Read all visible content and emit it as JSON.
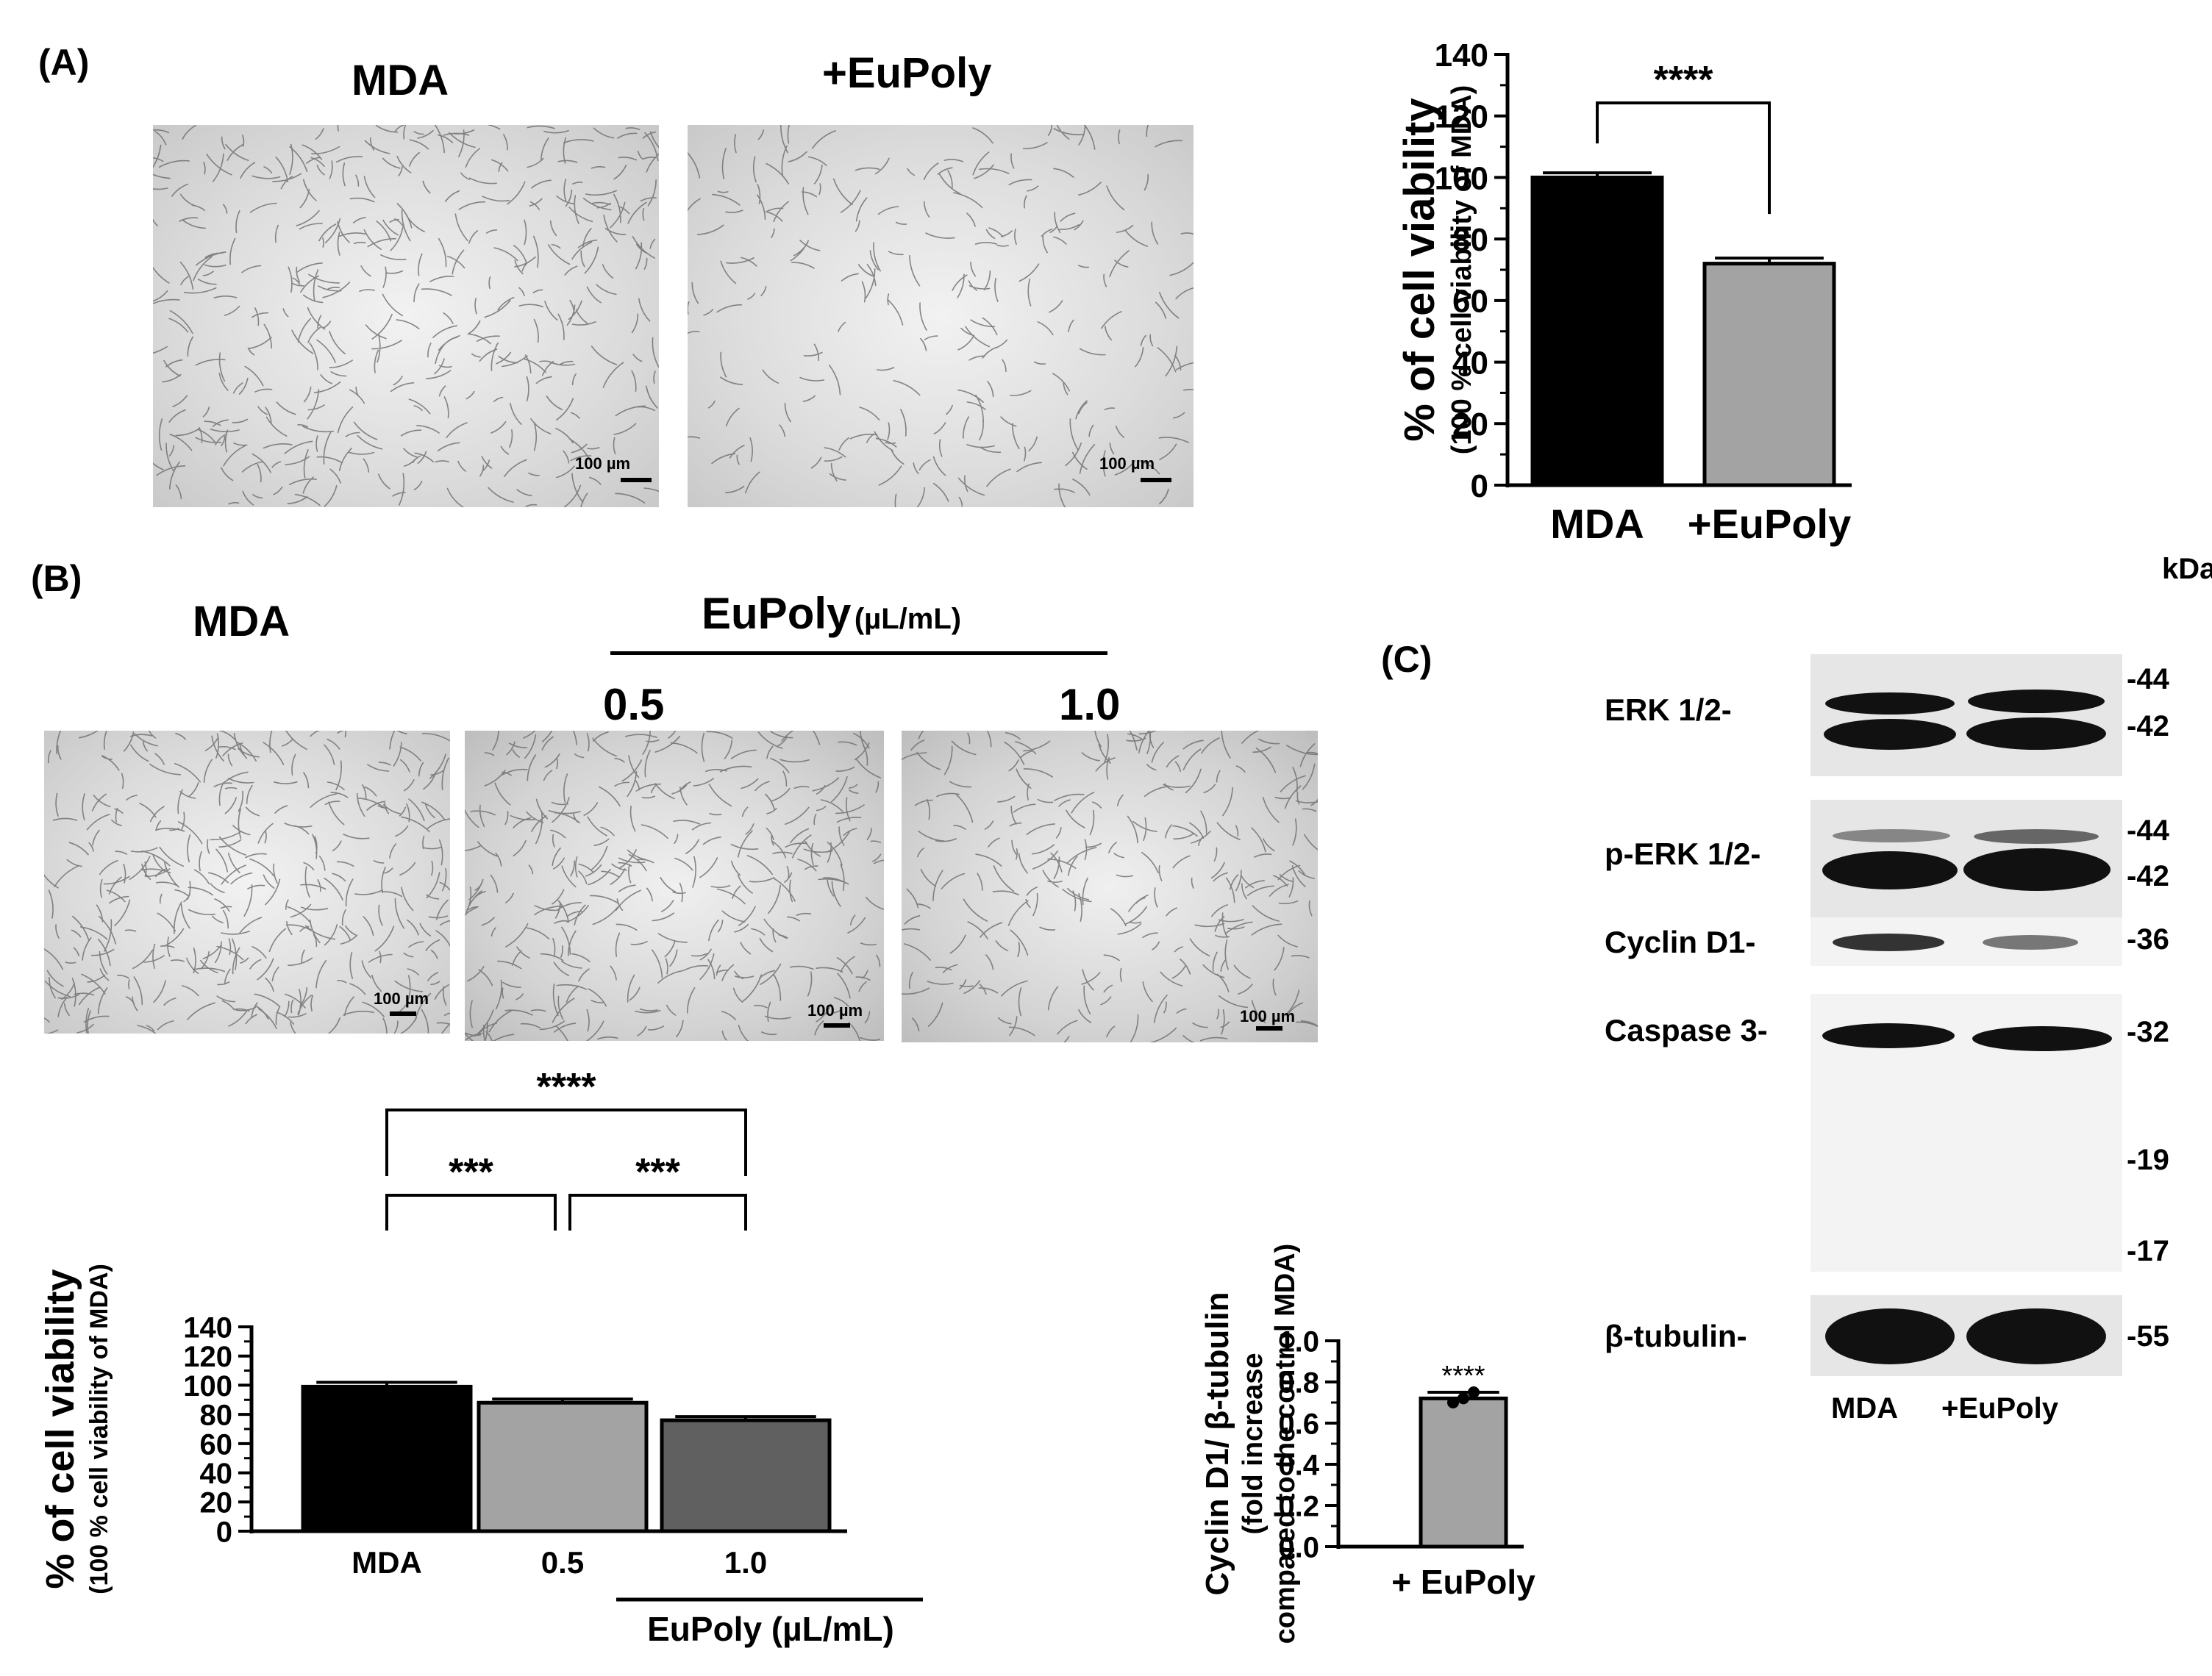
{
  "panel_a": {
    "label": "(A)",
    "images": [
      {
        "title": "MDA",
        "scale_label": "100 µm"
      },
      {
        "title": "+EuPoly",
        "scale_label": "100 µm"
      }
    ]
  },
  "panel_b": {
    "label": "(B)",
    "control_title": "MDA",
    "group_title": "EuPoly",
    "group_unit": "(µL/mL)",
    "images": [
      {
        "title": "",
        "scale_label": "100 µm"
      },
      {
        "title": "0.5",
        "scale_label": "100 µm"
      },
      {
        "title": "1.0",
        "scale_label": "100 µm"
      }
    ]
  },
  "panel_c": {
    "label": "(C)",
    "kda_header": "kDa",
    "rows": [
      {
        "label": "ERK 1/2-",
        "markers": [
          "-44",
          "-42"
        ]
      },
      {
        "label": "p-ERK 1/2-",
        "markers": [
          "-44",
          "-42"
        ]
      },
      {
        "label": "Cyclin D1-",
        "markers": [
          "-36"
        ]
      },
      {
        "label": "Caspase 3-",
        "markers": [
          "-32",
          "-19",
          "-17"
        ]
      },
      {
        "label": "β-tubulin-",
        "markers": [
          "-55"
        ]
      }
    ],
    "lanes": [
      "MDA",
      "+EuPoly"
    ]
  },
  "chart_data": [
    {
      "type": "bar",
      "categories": [
        "MDA",
        "+EuPoly"
      ],
      "values": [
        100,
        72
      ],
      "errors": [
        1.5,
        1.8
      ],
      "colors": [
        "#000000",
        "#a3a3a3"
      ],
      "ylabel": "% of cell viability",
      "ylabel2": "(100 % cell viability of MDA)",
      "ylim": [
        0,
        140
      ],
      "yticks": [
        "0",
        "20",
        "40",
        "60",
        "80",
        "100",
        "120",
        "140"
      ],
      "significance": [
        {
          "from": 0,
          "to": 1,
          "label": "****"
        }
      ]
    },
    {
      "type": "bar",
      "categories": [
        "MDA",
        "0.5",
        "1.0"
      ],
      "values": [
        99,
        88,
        76
      ],
      "errors": [
        3,
        2.5,
        2.5
      ],
      "colors": [
        "#000000",
        "#a3a3a3",
        "#606060"
      ],
      "ylabel": "% of cell viability",
      "ylabel2": "(100 % cell viability of MDA)",
      "ylim": [
        0,
        140
      ],
      "yticks": [
        "0",
        "20",
        "40",
        "60",
        "80",
        "100",
        "120",
        "140"
      ],
      "xgroup_label": "EuPoly (µL/mL)",
      "significance": [
        {
          "from": 0,
          "to": 1,
          "label": "***"
        },
        {
          "from": 1,
          "to": 2,
          "label": "***"
        },
        {
          "from": 0,
          "to": 2,
          "label": "****"
        }
      ]
    },
    {
      "type": "bar",
      "categories": [
        "+ EuPoly"
      ],
      "values": [
        0.72
      ],
      "errors": [
        0.03
      ],
      "points": [
        0.7,
        0.72,
        0.75
      ],
      "colors": [
        "#a3a3a3"
      ],
      "ylabel": "Cyclin D1/ β-tubulin",
      "ylabel2": "(fold increase",
      "ylabel3": "compared to the control MDA)",
      "ylim": [
        0,
        1.0
      ],
      "yticks": [
        "0.0",
        "0.2",
        "0.4",
        "0.6",
        "0.8",
        "1.0"
      ],
      "significance_label": "****"
    }
  ]
}
